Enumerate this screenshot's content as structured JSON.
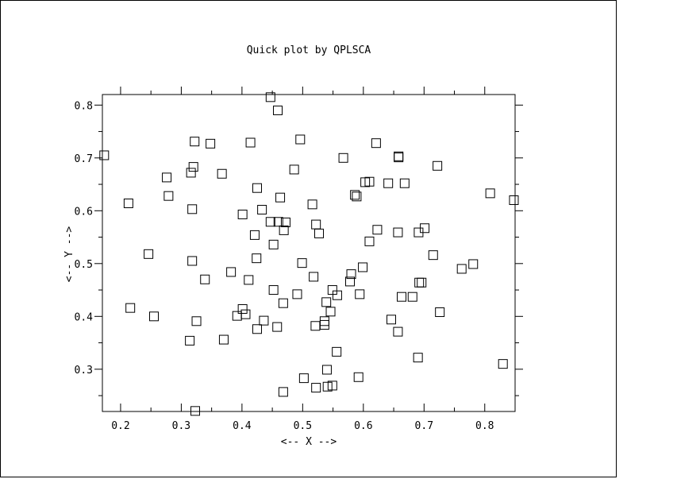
{
  "chart_data": {
    "type": "scatter",
    "title": "Quick plot by QPLSCA",
    "xlabel": "<-- X -->",
    "ylabel": "<-- Y -->",
    "xlim": [
      0.17,
      0.85
    ],
    "ylim": [
      0.22,
      0.82
    ],
    "xticks": [
      0.2,
      0.3,
      0.4,
      0.5,
      0.6,
      0.7,
      0.8
    ],
    "yticks": [
      0.3,
      0.4,
      0.5,
      0.6,
      0.7,
      0.8
    ],
    "xtick_labels": [
      "0.2",
      "0.3",
      "0.4",
      "0.5",
      "0.6",
      "0.7",
      "0.8"
    ],
    "ytick_labels": [
      "0.3",
      "0.4",
      "0.5",
      "0.6",
      "0.7",
      "0.8"
    ],
    "grid": false,
    "marker": "open-square",
    "colors": {
      "ink": "#000000",
      "background": "#ffffff"
    },
    "points": [
      [
        0.447,
        0.815
      ],
      [
        0.459,
        0.79
      ],
      [
        0.322,
        0.731
      ],
      [
        0.348,
        0.727
      ],
      [
        0.414,
        0.729
      ],
      [
        0.496,
        0.735
      ],
      [
        0.621,
        0.728
      ],
      [
        0.173,
        0.705
      ],
      [
        0.567,
        0.7
      ],
      [
        0.658,
        0.703
      ],
      [
        0.658,
        0.701
      ],
      [
        0.32,
        0.683
      ],
      [
        0.722,
        0.685
      ],
      [
        0.276,
        0.663
      ],
      [
        0.316,
        0.672
      ],
      [
        0.367,
        0.67
      ],
      [
        0.486,
        0.678
      ],
      [
        0.603,
        0.654
      ],
      [
        0.61,
        0.655
      ],
      [
        0.641,
        0.652
      ],
      [
        0.668,
        0.652
      ],
      [
        0.425,
        0.643
      ],
      [
        0.279,
        0.628
      ],
      [
        0.463,
        0.625
      ],
      [
        0.586,
        0.63
      ],
      [
        0.589,
        0.627
      ],
      [
        0.809,
        0.633
      ],
      [
        0.848,
        0.62
      ],
      [
        0.213,
        0.614
      ],
      [
        0.516,
        0.612
      ],
      [
        0.318,
        0.603
      ],
      [
        0.433,
        0.602
      ],
      [
        0.401,
        0.593
      ],
      [
        0.447,
        0.579
      ],
      [
        0.46,
        0.579
      ],
      [
        0.472,
        0.578
      ],
      [
        0.522,
        0.574
      ],
      [
        0.469,
        0.563
      ],
      [
        0.623,
        0.564
      ],
      [
        0.701,
        0.567
      ],
      [
        0.421,
        0.554
      ],
      [
        0.527,
        0.557
      ],
      [
        0.657,
        0.559
      ],
      [
        0.691,
        0.559
      ],
      [
        0.61,
        0.542
      ],
      [
        0.452,
        0.536
      ],
      [
        0.715,
        0.516
      ],
      [
        0.246,
        0.518
      ],
      [
        0.424,
        0.51
      ],
      [
        0.318,
        0.505
      ],
      [
        0.499,
        0.501
      ],
      [
        0.599,
        0.493
      ],
      [
        0.781,
        0.499
      ],
      [
        0.762,
        0.49
      ],
      [
        0.382,
        0.484
      ],
      [
        0.58,
        0.48
      ],
      [
        0.339,
        0.47
      ],
      [
        0.411,
        0.469
      ],
      [
        0.518,
        0.475
      ],
      [
        0.578,
        0.466
      ],
      [
        0.692,
        0.464
      ],
      [
        0.696,
        0.464
      ],
      [
        0.452,
        0.45
      ],
      [
        0.549,
        0.45
      ],
      [
        0.491,
        0.442
      ],
      [
        0.557,
        0.44
      ],
      [
        0.594,
        0.442
      ],
      [
        0.663,
        0.437
      ],
      [
        0.681,
        0.437
      ],
      [
        0.468,
        0.425
      ],
      [
        0.539,
        0.427
      ],
      [
        0.216,
        0.416
      ],
      [
        0.401,
        0.414
      ],
      [
        0.546,
        0.409
      ],
      [
        0.726,
        0.408
      ],
      [
        0.255,
        0.4
      ],
      [
        0.392,
        0.401
      ],
      [
        0.406,
        0.404
      ],
      [
        0.325,
        0.391
      ],
      [
        0.436,
        0.392
      ],
      [
        0.646,
        0.394
      ],
      [
        0.536,
        0.391
      ],
      [
        0.536,
        0.384
      ],
      [
        0.521,
        0.382
      ],
      [
        0.458,
        0.38
      ],
      [
        0.425,
        0.376
      ],
      [
        0.657,
        0.371
      ],
      [
        0.314,
        0.354
      ],
      [
        0.37,
        0.356
      ],
      [
        0.556,
        0.333
      ],
      [
        0.69,
        0.322
      ],
      [
        0.83,
        0.31
      ],
      [
        0.54,
        0.299
      ],
      [
        0.502,
        0.283
      ],
      [
        0.592,
        0.285
      ],
      [
        0.549,
        0.269
      ],
      [
        0.522,
        0.265
      ],
      [
        0.541,
        0.267
      ],
      [
        0.468,
        0.257
      ],
      [
        0.323,
        0.221
      ]
    ]
  }
}
